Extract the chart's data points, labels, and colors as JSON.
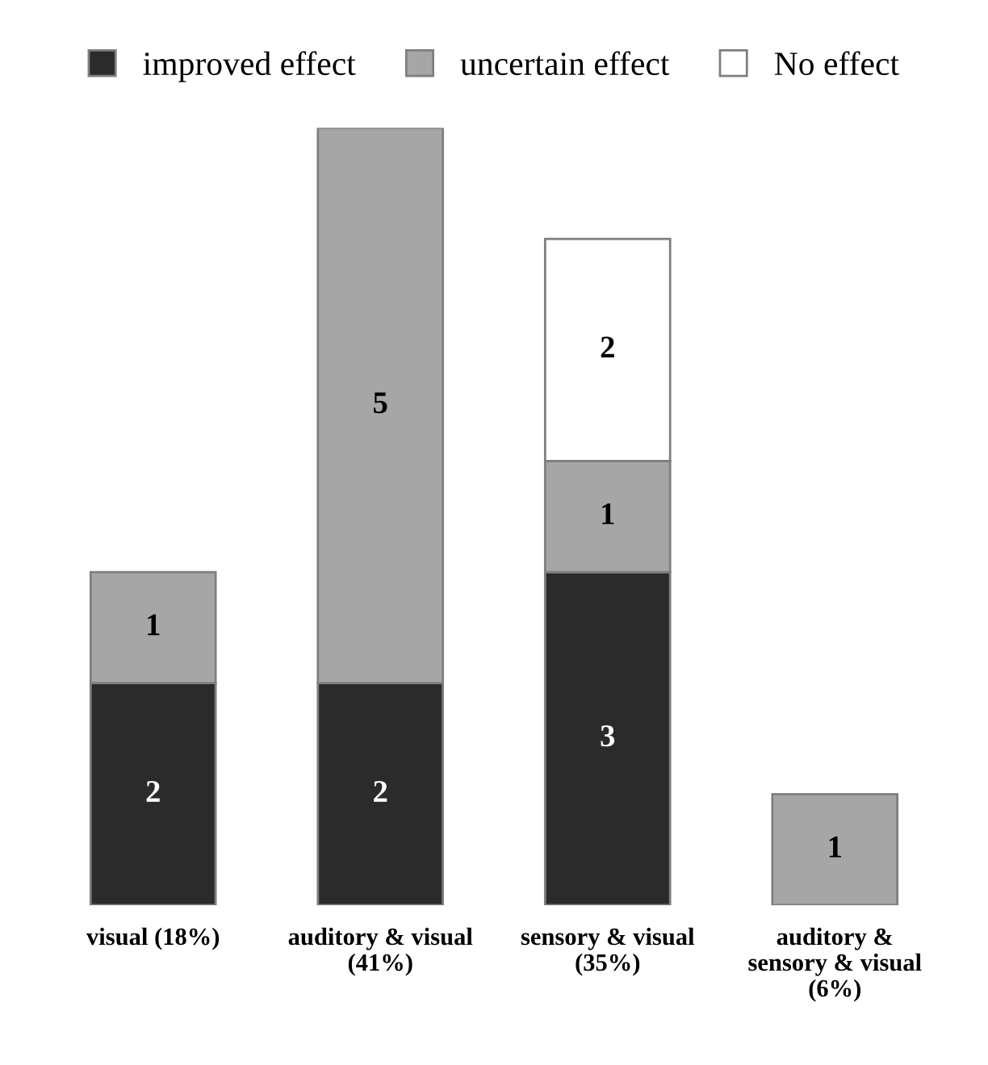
{
  "chart_data": {
    "type": "bar",
    "stacked": true,
    "categories": [
      "visual (18%)",
      "auditory & visual\n(41%)",
      "sensory & visual\n(35%)",
      "auditory &\nsensory & visual\n(6%)"
    ],
    "series": [
      {
        "name": "improved effect",
        "color": "#2b2b2b",
        "values": [
          2,
          2,
          3,
          null
        ]
      },
      {
        "name": "uncertain effect",
        "color": "#a6a6a6",
        "values": [
          1,
          5,
          1,
          1
        ]
      },
      {
        "name": "No effect",
        "color": "#ffffff",
        "values": [
          null,
          null,
          2,
          null
        ]
      }
    ],
    "data_labels": true,
    "legend": "top",
    "grid": false,
    "tick_labels": "x"
  }
}
